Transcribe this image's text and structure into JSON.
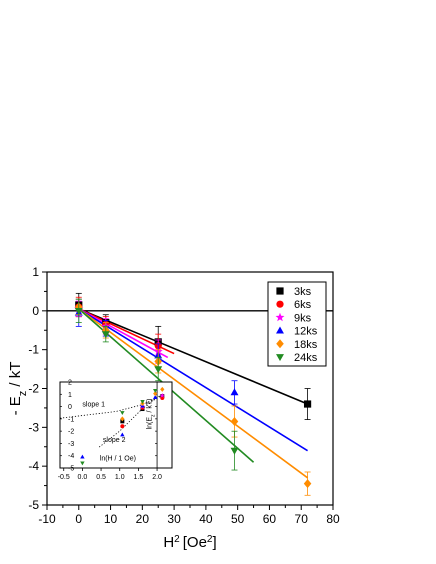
{
  "chart_data": {
    "type": "scatter",
    "title": "",
    "xlabel": "H",
    "xlabel_sup": "2",
    "xlabel_unit": "[Oe",
    "xlabel_unit_sup": "2",
    "xlabel_unit_close": "]",
    "ylabel": "- E",
    "ylabel_sub": "z",
    "ylabel_rest": " / kT",
    "xlim": [
      -10,
      80
    ],
    "ylim": [
      -5,
      1
    ],
    "xticks": [
      "-10",
      "0",
      "10",
      "20",
      "30",
      "40",
      "50",
      "60",
      "70",
      "80"
    ],
    "yticks": [
      "1",
      "0",
      "-1",
      "-2",
      "-3",
      "-4",
      "-5"
    ],
    "xtick_values": [
      -10,
      0,
      10,
      20,
      30,
      40,
      50,
      60,
      70,
      80
    ],
    "ytick_values": [
      1,
      0,
      -1,
      -2,
      -3,
      -4,
      -5
    ],
    "grid": false,
    "legend_position": "top-right",
    "reference_line_y": 0,
    "series": [
      {
        "name": "3ks",
        "color": "#000000",
        "marker": "square",
        "points": [
          {
            "x": 0,
            "y": 0.15,
            "err": 0.3
          },
          {
            "x": 8.5,
            "y": -0.3,
            "err": 0.2
          },
          {
            "x": 25,
            "y": -0.8,
            "err": 0.4
          },
          {
            "x": 72,
            "y": -2.4,
            "err": 0.4
          }
        ],
        "fit": [
          [
            0,
            0.05
          ],
          [
            72,
            -2.4
          ]
        ]
      },
      {
        "name": "6ks",
        "color": "#ff0000",
        "marker": "circle",
        "points": [
          {
            "x": 0,
            "y": 0.1,
            "err": 0.25
          },
          {
            "x": 8.5,
            "y": -0.35,
            "err": 0.2
          },
          {
            "x": 25,
            "y": -0.9,
            "err": 0.3
          }
        ],
        "fit": [
          [
            0,
            0.05
          ],
          [
            30,
            -1.1
          ]
        ]
      },
      {
        "name": "9ks",
        "color": "#ff00ff",
        "marker": "star",
        "points": [
          {
            "x": 0,
            "y": 0.05,
            "err": 0.2
          },
          {
            "x": 8.5,
            "y": -0.4,
            "err": 0.2
          },
          {
            "x": 25,
            "y": -1.05,
            "err": 0.3
          }
        ],
        "fit": [
          [
            0,
            0.05
          ],
          [
            28,
            -1.2
          ]
        ]
      },
      {
        "name": "12ks",
        "color": "#0000ff",
        "marker": "triangle-up",
        "points": [
          {
            "x": 0,
            "y": -0.05,
            "err": 0.35
          },
          {
            "x": 8.5,
            "y": -0.45,
            "err": 0.2
          },
          {
            "x": 25,
            "y": -1.15,
            "err": 0.3
          },
          {
            "x": 49,
            "y": -2.1,
            "err": 0.3
          }
        ],
        "fit": [
          [
            0,
            0.05
          ],
          [
            72,
            -3.6
          ]
        ]
      },
      {
        "name": "18ks",
        "color": "#ff8c00",
        "marker": "diamond",
        "points": [
          {
            "x": 0,
            "y": 0.1,
            "err": 0.2
          },
          {
            "x": 8.5,
            "y": -0.5,
            "err": 0.2
          },
          {
            "x": 25,
            "y": -1.3,
            "err": 0.3
          },
          {
            "x": 49,
            "y": -2.85,
            "err": 0.4
          },
          {
            "x": 72,
            "y": -4.45,
            "err": 0.3
          }
        ],
        "fit": [
          [
            0,
            0.05
          ],
          [
            72,
            -4.3
          ]
        ]
      },
      {
        "name": "24ks",
        "color": "#228b22",
        "marker": "triangle-down",
        "points": [
          {
            "x": 0,
            "y": 0.0,
            "err": 0.3
          },
          {
            "x": 8.5,
            "y": -0.6,
            "err": 0.2
          },
          {
            "x": 25,
            "y": -1.5,
            "err": 0.3
          },
          {
            "x": 49,
            "y": -3.6,
            "err": 0.5
          }
        ],
        "fit": [
          [
            0,
            0.05
          ],
          [
            55,
            -3.9
          ]
        ]
      }
    ],
    "inset": {
      "xlabel": "ln(H / 1 Oe)",
      "ylabel": "ln(E",
      "ylabel_sub": "z",
      "ylabel_rest": " / kT)",
      "xlim": [
        -0.6,
        2.4
      ],
      "ylim": [
        -5,
        2
      ],
      "xticks": [
        "-0.5",
        "0.0",
        "0.5",
        "1.0",
        "1.5",
        "2.0"
      ],
      "yticks": [
        "2",
        "1",
        "0",
        "-1",
        "-2",
        "-3",
        "-4",
        "-5"
      ],
      "xtick_values": [
        -0.5,
        0.0,
        0.5,
        1.0,
        1.5,
        2.0
      ],
      "ytick_values": [
        2,
        1,
        0,
        -1,
        -2,
        -3,
        -4,
        -5
      ],
      "annotations": [
        {
          "text": "slope 1",
          "x": 0.0,
          "y": 0.0
        },
        {
          "text": "slope 2",
          "x": 0.55,
          "y": -2.9
        }
      ],
      "fit_lines": [
        {
          "points": [
            [
              -0.6,
              -0.95
            ],
            [
              0.9,
              -0.4
            ],
            [
              1.6,
              0.15
            ],
            [
              2.15,
              0.9
            ]
          ]
        },
        {
          "points": [
            [
              0.45,
              -3.3
            ],
            [
              1.0,
              -2.0
            ],
            [
              1.6,
              -0.2
            ],
            [
              2.1,
              0.95
            ]
          ]
        }
      ],
      "series": [
        {
          "color": "#000000",
          "marker": "square",
          "points": [
            [
              1.07,
              -1.2
            ],
            [
              1.61,
              -0.2
            ],
            [
              2.14,
              0.85
            ]
          ]
        },
        {
          "color": "#ff0000",
          "marker": "circle",
          "points": [
            [
              1.07,
              -1.6
            ],
            [
              1.61,
              -0.1
            ],
            [
              2.14,
              0.7
            ]
          ]
        },
        {
          "color": "#ff00ff",
          "marker": "star",
          "points": [
            [
              1.61,
              0.0
            ],
            [
              2.14,
              0.9
            ]
          ]
        },
        {
          "color": "#0000ff",
          "marker": "triangle-up",
          "points": [
            [
              0.0,
              -4.1
            ],
            [
              1.07,
              -2.3
            ],
            [
              1.61,
              0.05
            ],
            [
              1.95,
              0.75
            ]
          ]
        },
        {
          "color": "#ff8c00",
          "marker": "diamond",
          "points": [
            [
              1.07,
              -1.0
            ],
            [
              1.61,
              0.25
            ],
            [
              1.95,
              1.05
            ],
            [
              2.14,
              1.4
            ]
          ]
        },
        {
          "color": "#228b22",
          "marker": "triangle-down",
          "points": [
            [
              0.0,
              -4.6
            ],
            [
              1.07,
              -0.5
            ],
            [
              1.61,
              0.4
            ],
            [
              1.95,
              1.3
            ]
          ]
        }
      ]
    }
  }
}
